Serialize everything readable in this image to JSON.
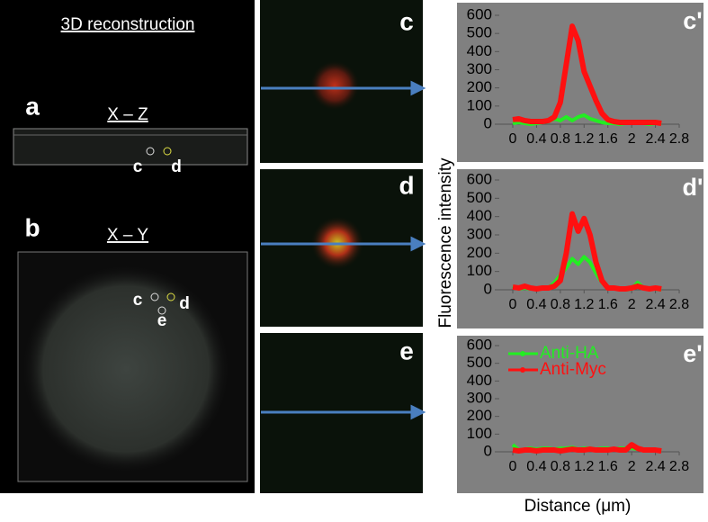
{
  "left_panel": {
    "title": "3D reconstruction",
    "a_label": "a",
    "a_view": "X – Z",
    "a_points": [
      "c",
      "d"
    ],
    "b_label": "b",
    "b_view": "X – Y",
    "b_points": [
      "c",
      "d",
      "e"
    ]
  },
  "middle_panel": {
    "labels": [
      "c",
      "d",
      "e"
    ]
  },
  "axis_labels": {
    "y": "Fluorescence intensity",
    "x": "Distance (μm)"
  },
  "chart_data": [
    {
      "type": "line",
      "label": "c'",
      "x": [
        0,
        0.1,
        0.2,
        0.3,
        0.4,
        0.5,
        0.6,
        0.7,
        0.8,
        0.9,
        1,
        1.1,
        1.2,
        1.3,
        1.4,
        1.5,
        1.6,
        1.7,
        1.8,
        1.9,
        2,
        2.1,
        2.2,
        2.3,
        2.4,
        2.5
      ],
      "series": [
        {
          "color": "#22ee22",
          "values": [
            5,
            10,
            5,
            0,
            5,
            10,
            15,
            30,
            20,
            40,
            20,
            40,
            50,
            30,
            20,
            10,
            5,
            5,
            0,
            5,
            5,
            5,
            5,
            0,
            5,
            5
          ]
        },
        {
          "color": "#ff1010",
          "values": [
            25,
            30,
            20,
            15,
            15,
            15,
            20,
            40,
            120,
            330,
            540,
            460,
            290,
            210,
            130,
            60,
            25,
            15,
            10,
            10,
            10,
            10,
            10,
            10,
            10,
            5
          ]
        }
      ],
      "xlim": [
        0,
        2.8
      ],
      "xticks": [
        0,
        0.4,
        0.8,
        1.2,
        1.6,
        2,
        2.4,
        2.8
      ],
      "ylim": [
        0,
        600
      ],
      "yticks": [
        0,
        100,
        200,
        300,
        400,
        500,
        600
      ]
    },
    {
      "type": "line",
      "label": "d'",
      "x": [
        0,
        0.1,
        0.2,
        0.3,
        0.4,
        0.5,
        0.6,
        0.7,
        0.8,
        0.9,
        1,
        1.1,
        1.2,
        1.3,
        1.4,
        1.5,
        1.6,
        1.7,
        1.8,
        1.9,
        2,
        2.1,
        2.2,
        2.3,
        2.4,
        2.5
      ],
      "series": [
        {
          "color": "#22ee22",
          "values": [
            20,
            5,
            10,
            5,
            5,
            5,
            10,
            40,
            80,
            120,
            170,
            140,
            180,
            150,
            90,
            40,
            10,
            5,
            5,
            0,
            5,
            40,
            10,
            5,
            5,
            0
          ]
        },
        {
          "color": "#ff1010",
          "values": [
            15,
            10,
            20,
            10,
            5,
            10,
            10,
            20,
            50,
            200,
            415,
            320,
            390,
            300,
            150,
            50,
            10,
            10,
            5,
            5,
            10,
            20,
            10,
            5,
            10,
            5
          ]
        }
      ],
      "xlim": [
        0,
        2.8
      ],
      "xticks": [
        0,
        0.4,
        0.8,
        1.2,
        1.6,
        2,
        2.4,
        2.8
      ],
      "ylim": [
        0,
        600
      ],
      "yticks": [
        0,
        100,
        200,
        300,
        400,
        500,
        600
      ]
    },
    {
      "type": "line",
      "label": "e'",
      "x": [
        0,
        0.1,
        0.2,
        0.3,
        0.4,
        0.5,
        0.6,
        0.7,
        0.8,
        0.9,
        1,
        1.1,
        1.2,
        1.3,
        1.4,
        1.5,
        1.6,
        1.7,
        1.8,
        1.9,
        2,
        2.1,
        2.2,
        2.3,
        2.4,
        2.5
      ],
      "series": [
        {
          "name": "Anti-HA",
          "color": "#22ee22",
          "values": [
            40,
            10,
            15,
            20,
            15,
            20,
            20,
            15,
            20,
            20,
            25,
            15,
            20,
            20,
            15,
            20,
            20,
            15,
            20,
            20,
            20,
            15,
            15,
            15,
            10,
            10
          ]
        },
        {
          "name": "Anti-Myc",
          "color": "#ff1010",
          "values": [
            10,
            5,
            10,
            10,
            5,
            10,
            10,
            10,
            5,
            10,
            15,
            10,
            10,
            15,
            10,
            10,
            10,
            15,
            10,
            10,
            40,
            20,
            10,
            10,
            10,
            5
          ]
        }
      ],
      "xlim": [
        0,
        2.8
      ],
      "xticks": [
        0,
        0.4,
        0.8,
        1.2,
        1.6,
        2,
        2.4,
        2.8
      ],
      "ylim": [
        0,
        600
      ],
      "yticks": [
        0,
        100,
        200,
        300,
        400,
        500,
        600
      ],
      "legend": "top-left"
    }
  ]
}
